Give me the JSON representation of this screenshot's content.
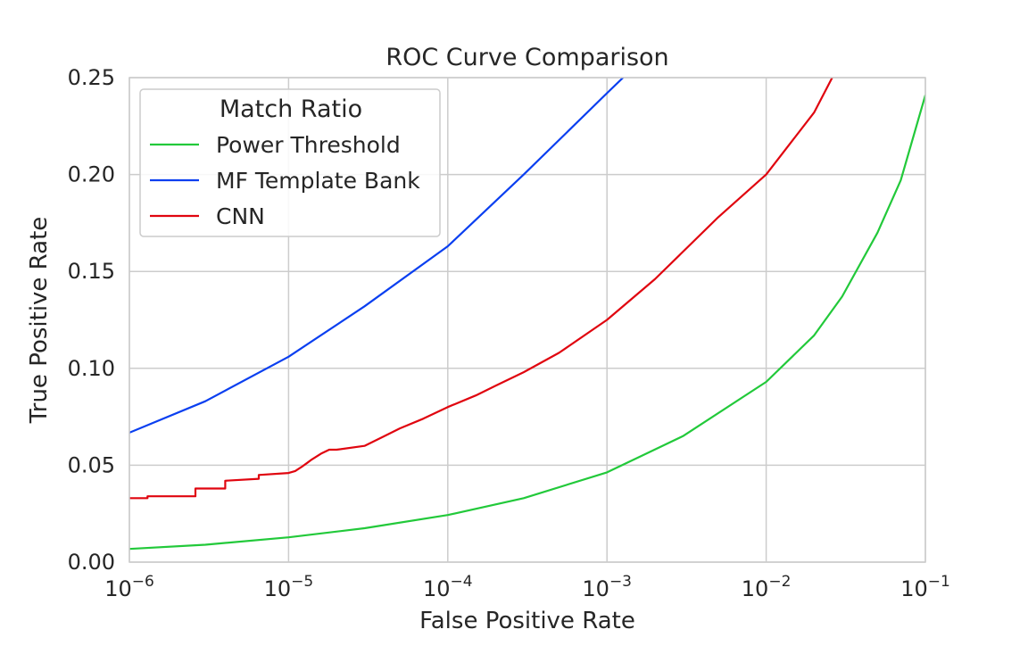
{
  "chart_data": {
    "type": "line",
    "title": "ROC Curve Comparison",
    "xlabel": "False Positive Rate",
    "ylabel": "True Positive Rate",
    "x_scale": "log",
    "xlim": [
      1e-06,
      0.1
    ],
    "ylim": [
      0.0,
      0.25
    ],
    "grid": true,
    "x_ticks": [
      {
        "value": 1e-06,
        "base": "10",
        "exp": "−6"
      },
      {
        "value": 1e-05,
        "base": "10",
        "exp": "−5"
      },
      {
        "value": 0.0001,
        "base": "10",
        "exp": "−4"
      },
      {
        "value": 0.001,
        "base": "10",
        "exp": "−3"
      },
      {
        "value": 0.01,
        "base": "10",
        "exp": "−2"
      },
      {
        "value": 0.1,
        "base": "10",
        "exp": "−1"
      }
    ],
    "y_ticks": [
      {
        "value": 0.0,
        "label": "0.00"
      },
      {
        "value": 0.05,
        "label": "0.05"
      },
      {
        "value": 0.1,
        "label": "0.10"
      },
      {
        "value": 0.15,
        "label": "0.15"
      },
      {
        "value": 0.2,
        "label": "0.20"
      },
      {
        "value": 0.25,
        "label": "0.25"
      }
    ],
    "legend": {
      "title": "Match Ratio",
      "placement": "upper-left"
    },
    "series": [
      {
        "name": "Power Threshold",
        "color": "#22c93a",
        "x": [
          1e-06,
          3e-06,
          1e-05,
          3e-05,
          0.0001,
          0.0003,
          0.001,
          0.003,
          0.01,
          0.02,
          0.03,
          0.05,
          0.07,
          0.1
        ],
        "y": [
          0.0068,
          0.009,
          0.0128,
          0.0175,
          0.0243,
          0.033,
          0.0463,
          0.065,
          0.093,
          0.117,
          0.137,
          0.17,
          0.197,
          0.241
        ]
      },
      {
        "name": "MF Template Bank",
        "color": "#0a3ff0",
        "x": [
          1e-06,
          3e-06,
          1e-05,
          3e-05,
          0.0001,
          0.0003,
          0.001,
          0.0013
        ],
        "y": [
          0.0668,
          0.083,
          0.106,
          0.132,
          0.163,
          0.2,
          0.242,
          0.251
        ]
      },
      {
        "name": "CNN",
        "color": "#e0050f",
        "x": [
          1e-06,
          1.3e-06,
          1.3e-06,
          2.6e-06,
          2.6e-06,
          4e-06,
          4e-06,
          6.5e-06,
          6.5e-06,
          1e-05,
          1.1e-05,
          1.2e-05,
          1.3e-05,
          1.4e-05,
          1.6e-05,
          1.8e-05,
          2e-05,
          3e-05,
          4e-05,
          5e-05,
          7e-05,
          0.0001,
          0.00015,
          0.0002,
          0.0003,
          0.0005,
          0.001,
          0.002,
          0.005,
          0.01,
          0.02,
          0.026
        ],
        "y": [
          0.033,
          0.033,
          0.034,
          0.034,
          0.038,
          0.038,
          0.042,
          0.043,
          0.045,
          0.046,
          0.047,
          0.049,
          0.051,
          0.053,
          0.056,
          0.058,
          0.058,
          0.06,
          0.065,
          0.069,
          0.074,
          0.08,
          0.086,
          0.091,
          0.098,
          0.108,
          0.125,
          0.146,
          0.178,
          0.2,
          0.232,
          0.25
        ]
      }
    ]
  }
}
